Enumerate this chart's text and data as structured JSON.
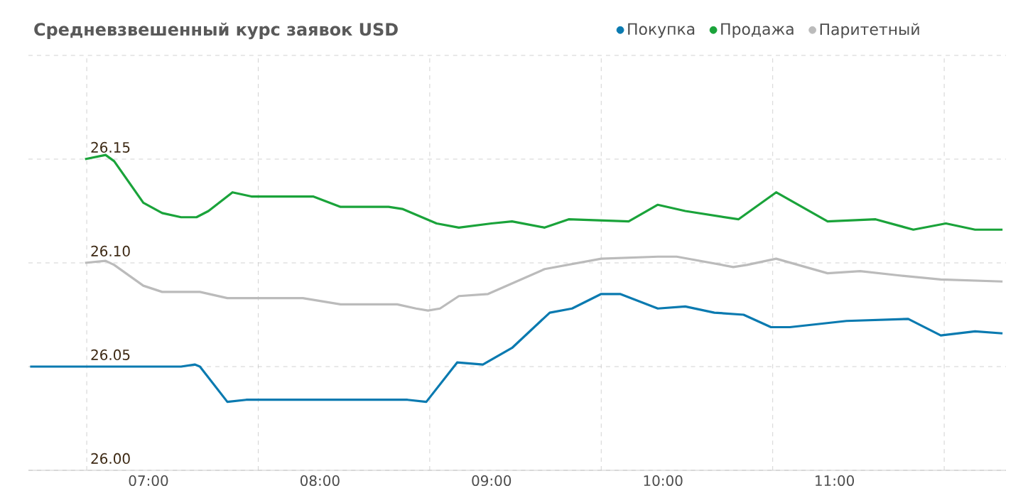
{
  "chart_data": {
    "type": "line",
    "title": "Средневзвешенный курс заявок USD",
    "xlim": [
      6.3,
      12.0
    ],
    "ylim": [
      26.0,
      26.2
    ],
    "xticks": [
      {
        "value": 6.64,
        "label": null
      },
      {
        "value": 7,
        "label": "07:00"
      },
      {
        "value": 7.64,
        "label": null
      },
      {
        "value": 8,
        "label": "08:00"
      },
      {
        "value": 8.64,
        "label": null
      },
      {
        "value": 9,
        "label": "09:00"
      },
      {
        "value": 9.64,
        "label": null
      },
      {
        "value": 10,
        "label": "10:00"
      },
      {
        "value": 10.64,
        "label": null
      },
      {
        "value": 11,
        "label": "11:00"
      },
      {
        "value": 11.64,
        "label": null
      }
    ],
    "yticks": [
      {
        "value": 26.0,
        "label": "26.00"
      },
      {
        "value": 26.05,
        "label": "26.05"
      },
      {
        "value": 26.1,
        "label": "26.10"
      },
      {
        "value": 26.15,
        "label": "26.15"
      },
      {
        "value": 26.2,
        "label": null
      }
    ],
    "grid": true,
    "legend": "top",
    "marker": "none",
    "line_style": "solid",
    "series": [
      {
        "name": "Покупка",
        "color": "#0a7ab0",
        "x": [
          6.31,
          7.19,
          7.27,
          7.3,
          7.46,
          7.57,
          8.51,
          8.62,
          8.8,
          8.95,
          9.12,
          9.34,
          9.47,
          9.64,
          9.75,
          9.97,
          10.13,
          10.3,
          10.47,
          10.63,
          10.74,
          11.07,
          11.43,
          11.62,
          11.82,
          11.98
        ],
        "values": [
          26.05,
          26.05,
          26.051,
          26.05,
          26.033,
          26.034,
          26.034,
          26.033,
          26.052,
          26.051,
          26.059,
          26.076,
          26.078,
          26.085,
          26.085,
          26.078,
          26.079,
          26.076,
          26.075,
          26.069,
          26.069,
          26.072,
          26.073,
          26.065,
          26.067,
          26.066
        ]
      },
      {
        "name": "Продажа",
        "color": "#1aa33a",
        "x": [
          6.63,
          6.75,
          6.8,
          6.97,
          7.08,
          7.19,
          7.28,
          7.35,
          7.49,
          7.6,
          7.96,
          8.12,
          8.4,
          8.48,
          8.68,
          8.81,
          9.0,
          9.12,
          9.31,
          9.45,
          9.8,
          9.97,
          10.13,
          10.44,
          10.66,
          10.96,
          11.24,
          11.46,
          11.65,
          11.82,
          11.98
        ],
        "values": [
          26.15,
          26.152,
          26.149,
          26.129,
          26.124,
          26.122,
          26.122,
          26.125,
          26.134,
          26.132,
          26.132,
          26.127,
          26.127,
          26.126,
          26.119,
          26.117,
          26.119,
          26.12,
          26.117,
          26.121,
          26.12,
          26.128,
          26.125,
          26.121,
          26.134,
          26.12,
          26.121,
          26.116,
          26.119,
          26.116,
          26.116
        ]
      },
      {
        "name": "Паритетный",
        "color": "#bbbbbb",
        "x": [
          6.63,
          6.75,
          6.8,
          6.97,
          7.08,
          7.3,
          7.46,
          7.9,
          8.12,
          8.45,
          8.56,
          8.63,
          8.7,
          8.81,
          8.98,
          9.2,
          9.31,
          9.64,
          9.97,
          10.08,
          10.41,
          10.49,
          10.66,
          10.96,
          11.15,
          11.37,
          11.62,
          11.98
        ],
        "values": [
          26.1,
          26.101,
          26.099,
          26.089,
          26.086,
          26.086,
          26.083,
          26.083,
          26.08,
          26.08,
          26.078,
          26.077,
          26.078,
          26.084,
          26.085,
          26.093,
          26.097,
          26.102,
          26.103,
          26.103,
          26.098,
          26.099,
          26.102,
          26.095,
          26.096,
          26.094,
          26.092,
          26.091
        ]
      }
    ]
  }
}
